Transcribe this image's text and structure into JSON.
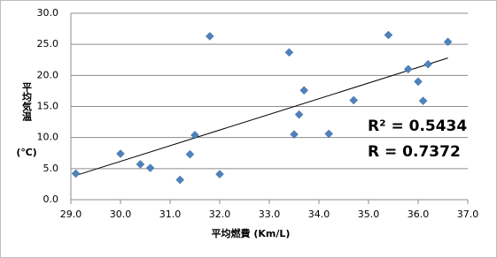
{
  "chart_data": {
    "type": "scatter",
    "xlabel": "平均燃費 (Km/L)",
    "ylabel": "平均気温",
    "ylabel_unit": "(℃)",
    "annotations": [
      "R² = 0.5434",
      "R = 0.7372"
    ],
    "series": [
      {
        "color": "#4f81bd",
        "x": [
          29.1,
          30.0,
          30.4,
          30.6,
          31.2,
          31.4,
          31.5,
          31.8,
          32.0,
          33.4,
          33.5,
          33.6,
          33.7,
          34.2,
          34.7,
          35.4,
          35.8,
          36.0,
          36.1,
          36.2,
          36.6
        ],
        "values": [
          4.2,
          7.4,
          5.7,
          5.1,
          3.2,
          7.3,
          10.4,
          26.3,
          4.1,
          23.7,
          10.5,
          13.7,
          17.6,
          10.6,
          16.0,
          26.5,
          21.0,
          19.0,
          15.9,
          21.8,
          25.4
        ]
      }
    ],
    "trendline": {
      "x": [
        29.1,
        36.6
      ],
      "values": [
        3.9,
        22.8
      ]
    },
    "xlim": [
      29,
      37
    ],
    "xticks": [
      {
        "value": 29,
        "label": "29.0"
      },
      {
        "value": 30,
        "label": "30.0"
      },
      {
        "value": 31,
        "label": "31.0"
      },
      {
        "value": 32,
        "label": "32.0"
      },
      {
        "value": 33,
        "label": "33.0"
      },
      {
        "value": 34,
        "label": "34.0"
      },
      {
        "value": 35,
        "label": "35.0"
      },
      {
        "value": 36,
        "label": "36.0"
      },
      {
        "value": 37,
        "label": "37.0"
      }
    ],
    "ylim": [
      0,
      30
    ],
    "yticks": [
      {
        "value": 0,
        "label": "0.0"
      },
      {
        "value": 5,
        "label": "5.0"
      },
      {
        "value": 10,
        "label": "10.0"
      },
      {
        "value": 15,
        "label": "15.0"
      },
      {
        "value": 20,
        "label": "20.0"
      },
      {
        "value": 25,
        "label": "25.0"
      },
      {
        "value": 30,
        "label": "30.0"
      }
    ],
    "grid": true
  }
}
